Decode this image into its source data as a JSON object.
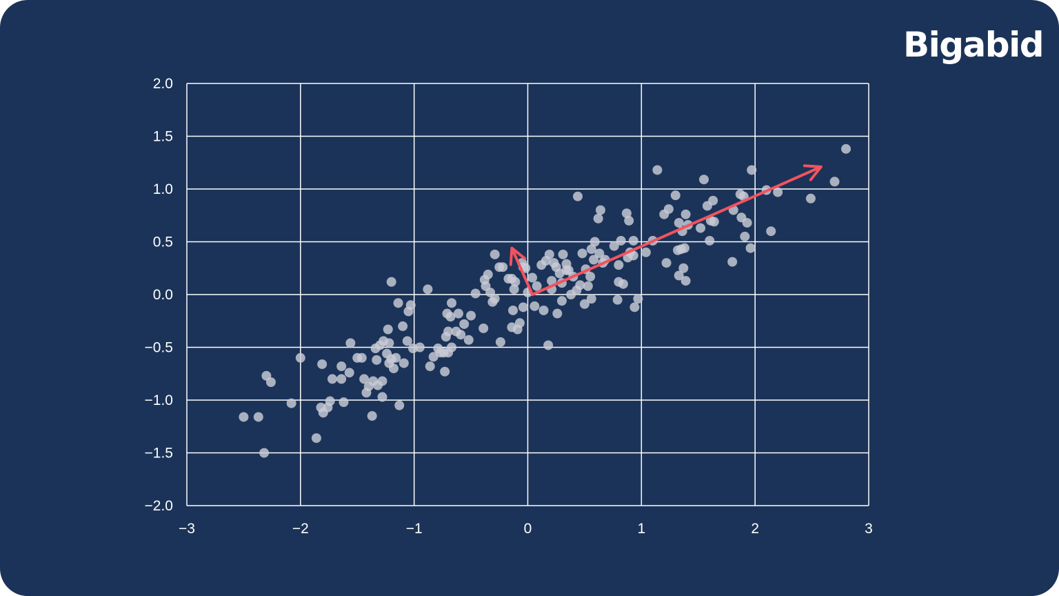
{
  "brand": {
    "name": "Bigabid"
  },
  "colors": {
    "background": "#1b3358",
    "grid": "#ffffff",
    "points": "#c9ccd6",
    "arrows": "#f2535f"
  },
  "chart_data": {
    "type": "scatter",
    "title": "",
    "xlabel": "",
    "ylabel": "",
    "xlim": [
      -3,
      3
    ],
    "ylim": [
      -2.0,
      2.0
    ],
    "x_ticks": [
      "−3",
      "−2",
      "−1",
      "0",
      "1",
      "2",
      "3"
    ],
    "y_ticks": [
      "2.0",
      "1.5",
      "1.0",
      "0.5",
      "0.0",
      "−0.5",
      "−1.0",
      "−1.5",
      "−2.0"
    ],
    "grid": true,
    "points": [
      [
        -2.5,
        -1.16
      ],
      [
        -2.37,
        -1.16
      ],
      [
        -2.32,
        -1.5
      ],
      [
        -2.3,
        -0.77
      ],
      [
        -2.26,
        -0.83
      ],
      [
        -2.08,
        -1.03
      ],
      [
        -2.0,
        -0.6
      ],
      [
        -1.86,
        -1.36
      ],
      [
        -1.82,
        -1.07
      ],
      [
        -1.8,
        -1.12
      ],
      [
        -1.81,
        -0.66
      ],
      [
        -1.76,
        -1.07
      ],
      [
        -1.74,
        -1.01
      ],
      [
        -1.72,
        -0.8
      ],
      [
        -1.64,
        -0.8
      ],
      [
        -1.64,
        -0.68
      ],
      [
        -1.62,
        -1.02
      ],
      [
        -1.57,
        -0.74
      ],
      [
        -1.56,
        -0.46
      ],
      [
        -1.5,
        -0.6
      ],
      [
        -1.46,
        -0.6
      ],
      [
        -1.44,
        -0.8
      ],
      [
        -1.42,
        -0.93
      ],
      [
        -1.4,
        -0.87
      ],
      [
        -1.37,
        -1.15
      ],
      [
        -1.36,
        -0.82
      ],
      [
        -1.34,
        -0.51
      ],
      [
        -1.32,
        -0.86
      ],
      [
        -1.33,
        -0.62
      ],
      [
        -1.3,
        -0.48
      ],
      [
        -1.28,
        -0.82
      ],
      [
        -1.28,
        -0.97
      ],
      [
        -1.27,
        -0.44
      ],
      [
        -1.24,
        -0.56
      ],
      [
        -1.23,
        -0.33
      ],
      [
        -1.22,
        -0.65
      ],
      [
        -1.22,
        -0.46
      ],
      [
        -1.2,
        0.12
      ],
      [
        -1.2,
        -0.61
      ],
      [
        -1.18,
        -0.7
      ],
      [
        -1.16,
        -0.6
      ],
      [
        -1.14,
        -0.08
      ],
      [
        -1.13,
        -1.05
      ],
      [
        -1.1,
        -0.3
      ],
      [
        -1.09,
        -0.65
      ],
      [
        -1.06,
        -0.44
      ],
      [
        -1.05,
        -0.16
      ],
      [
        -1.03,
        -0.1
      ],
      [
        -1.01,
        -0.51
      ],
      [
        -0.95,
        -0.5
      ],
      [
        -0.88,
        0.05
      ],
      [
        -0.86,
        -0.68
      ],
      [
        -0.83,
        -0.59
      ],
      [
        -0.79,
        -0.51
      ],
      [
        -0.77,
        -0.55
      ],
      [
        -0.74,
        -0.55
      ],
      [
        -0.73,
        -0.73
      ],
      [
        -0.72,
        -0.4
      ],
      [
        -0.71,
        -0.18
      ],
      [
        -0.7,
        -0.55
      ],
      [
        -0.7,
        -0.35
      ],
      [
        -0.68,
        -0.21
      ],
      [
        -0.67,
        -0.08
      ],
      [
        -0.67,
        -0.5
      ],
      [
        -0.63,
        -0.35
      ],
      [
        -0.61,
        -0.18
      ],
      [
        -0.59,
        -0.38
      ],
      [
        -0.56,
        -0.28
      ],
      [
        -0.52,
        -0.43
      ],
      [
        -0.5,
        -0.2
      ],
      [
        -0.46,
        0.01
      ],
      [
        -0.39,
        -0.32
      ],
      [
        -0.38,
        0.14
      ],
      [
        -0.37,
        0.08
      ],
      [
        -0.35,
        0.19
      ],
      [
        -0.33,
        0.02
      ],
      [
        -0.31,
        -0.07
      ],
      [
        -0.29,
        -0.04
      ],
      [
        -0.29,
        0.38
      ],
      [
        -0.25,
        0.26
      ],
      [
        -0.24,
        -0.45
      ],
      [
        -0.22,
        0.26
      ],
      [
        -0.17,
        0.15
      ],
      [
        -0.14,
        0.15
      ],
      [
        -0.14,
        -0.31
      ],
      [
        -0.13,
        -0.15
      ],
      [
        -0.12,
        0.05
      ],
      [
        -0.11,
        0.12
      ],
      [
        -0.09,
        -0.33
      ],
      [
        -0.07,
        -0.27
      ],
      [
        -0.05,
        0.3
      ],
      [
        -0.04,
        0.26
      ],
      [
        -0.04,
        -0.12
      ],
      [
        -0.02,
        0.25
      ],
      [
        0.0,
        0.02
      ],
      [
        0.04,
        0.16
      ],
      [
        0.06,
        -0.11
      ],
      [
        0.08,
        0.08
      ],
      [
        0.12,
        0.28
      ],
      [
        0.14,
        -0.15
      ],
      [
        0.16,
        0.32
      ],
      [
        0.18,
        -0.48
      ],
      [
        0.19,
        0.38
      ],
      [
        0.21,
        0.05
      ],
      [
        0.21,
        0.13
      ],
      [
        0.23,
        0.3
      ],
      [
        0.25,
        0.26
      ],
      [
        0.26,
        -0.18
      ],
      [
        0.28,
        0.2
      ],
      [
        0.3,
        0.11
      ],
      [
        0.3,
        -0.06
      ],
      [
        0.31,
        0.38
      ],
      [
        0.34,
        0.23
      ],
      [
        0.34,
        0.29
      ],
      [
        0.36,
        0.23
      ],
      [
        0.38,
        0.0
      ],
      [
        0.4,
        0.17
      ],
      [
        0.43,
        0.04
      ],
      [
        0.44,
        0.93
      ],
      [
        0.46,
        0.09
      ],
      [
        0.48,
        0.39
      ],
      [
        0.5,
        -0.09
      ],
      [
        0.51,
        0.24
      ],
      [
        0.53,
        0.08
      ],
      [
        0.55,
        0.17
      ],
      [
        0.56,
        0.43
      ],
      [
        0.56,
        -0.04
      ],
      [
        0.58,
        0.33
      ],
      [
        0.59,
        0.5
      ],
      [
        0.62,
        0.72
      ],
      [
        0.63,
        0.39
      ],
      [
        0.64,
        0.8
      ],
      [
        0.66,
        0.3
      ],
      [
        0.68,
        0.33
      ],
      [
        0.76,
        0.46
      ],
      [
        0.79,
        -0.05
      ],
      [
        0.8,
        0.12
      ],
      [
        0.8,
        0.28
      ],
      [
        0.82,
        0.51
      ],
      [
        0.84,
        0.1
      ],
      [
        0.87,
        0.77
      ],
      [
        0.88,
        0.35
      ],
      [
        0.89,
        0.7
      ],
      [
        0.9,
        0.4
      ],
      [
        0.93,
        0.51
      ],
      [
        0.93,
        0.37
      ],
      [
        0.94,
        -0.12
      ],
      [
        0.97,
        -0.04
      ],
      [
        1.04,
        0.4
      ],
      [
        1.1,
        0.51
      ],
      [
        1.14,
        1.18
      ],
      [
        1.2,
        0.76
      ],
      [
        1.22,
        0.3
      ],
      [
        1.24,
        0.81
      ],
      [
        1.3,
        0.94
      ],
      [
        1.32,
        0.42
      ],
      [
        1.33,
        0.68
      ],
      [
        1.33,
        0.18
      ],
      [
        1.35,
        0.43
      ],
      [
        1.36,
        0.6
      ],
      [
        1.37,
        0.25
      ],
      [
        1.38,
        0.44
      ],
      [
        1.39,
        0.76
      ],
      [
        1.39,
        0.13
      ],
      [
        1.41,
        0.66
      ],
      [
        1.52,
        0.63
      ],
      [
        1.55,
        1.09
      ],
      [
        1.58,
        0.84
      ],
      [
        1.6,
        0.51
      ],
      [
        1.61,
        0.7
      ],
      [
        1.63,
        0.89
      ],
      [
        1.64,
        0.69
      ],
      [
        1.8,
        0.31
      ],
      [
        1.81,
        0.8
      ],
      [
        1.87,
        0.95
      ],
      [
        1.88,
        0.73
      ],
      [
        1.9,
        0.93
      ],
      [
        1.91,
        0.55
      ],
      [
        1.93,
        0.68
      ],
      [
        1.96,
        0.44
      ],
      [
        1.97,
        1.18
      ],
      [
        2.1,
        0.99
      ],
      [
        2.14,
        0.6
      ],
      [
        2.2,
        0.97
      ],
      [
        2.49,
        0.91
      ],
      [
        2.7,
        1.07
      ],
      [
        2.8,
        1.38
      ]
    ],
    "vectors": [
      {
        "from": [
          0.04,
          0.0
        ],
        "to": [
          2.58,
          1.21
        ]
      },
      {
        "from": [
          0.04,
          0.0
        ],
        "to": [
          -0.14,
          0.44
        ]
      }
    ]
  }
}
